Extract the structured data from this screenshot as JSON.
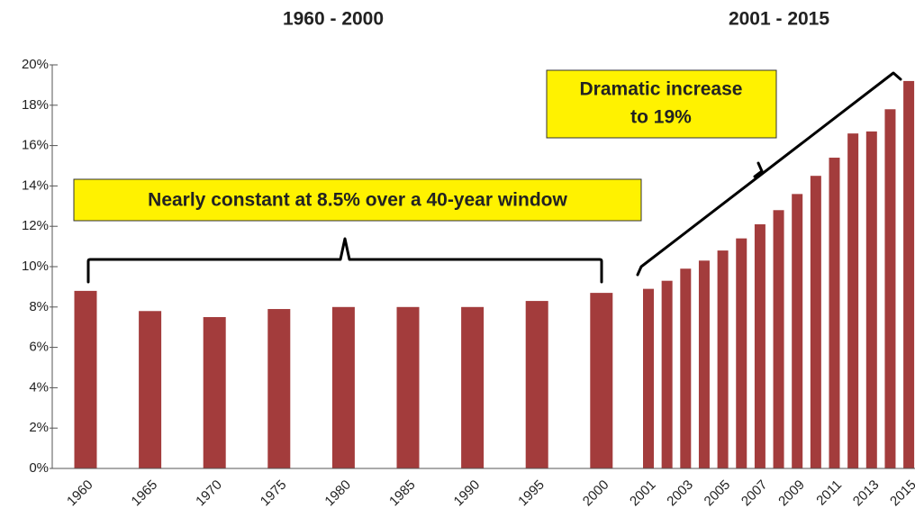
{
  "chart_data": {
    "type": "bar",
    "headers": [
      "1960 - 2000",
      "2001 - 2015"
    ],
    "categories": [
      "1960",
      "1965",
      "1970",
      "1975",
      "1980",
      "1985",
      "1990",
      "1995",
      "2000",
      "2001",
      null,
      "2003",
      null,
      "2005",
      null,
      "2007",
      null,
      "2009",
      null,
      "2011",
      null,
      "2013",
      null,
      "2015"
    ],
    "values": [
      8.8,
      7.8,
      7.5,
      7.9,
      8.0,
      8.0,
      8.0,
      8.3,
      8.7,
      8.9,
      9.3,
      9.9,
      10.3,
      10.8,
      11.4,
      12.1,
      12.8,
      13.6,
      14.5,
      15.4,
      16.6,
      16.7,
      17.8,
      19.2
    ],
    "color": "#a33c3c",
    "ylim": [
      0,
      20
    ],
    "yticks": [
      {
        "value": 0,
        "label": "0%"
      },
      {
        "value": 2,
        "label": "2%"
      },
      {
        "value": 4,
        "label": "4%"
      },
      {
        "value": 6,
        "label": "6%"
      },
      {
        "value": 8,
        "label": "8%"
      },
      {
        "value": 10,
        "label": "10%"
      },
      {
        "value": 12,
        "label": "12%"
      },
      {
        "value": 14,
        "label": "14%"
      },
      {
        "value": 16,
        "label": "16%"
      },
      {
        "value": 18,
        "label": "18%"
      },
      {
        "value": 20,
        "label": "20%"
      }
    ],
    "grid": false,
    "annotations": [
      {
        "lines": [
          "Nearly constant at 8.5% over a 40-year window"
        ]
      },
      {
        "lines": [
          "Dramatic increase",
          "to 19%"
        ]
      }
    ]
  }
}
